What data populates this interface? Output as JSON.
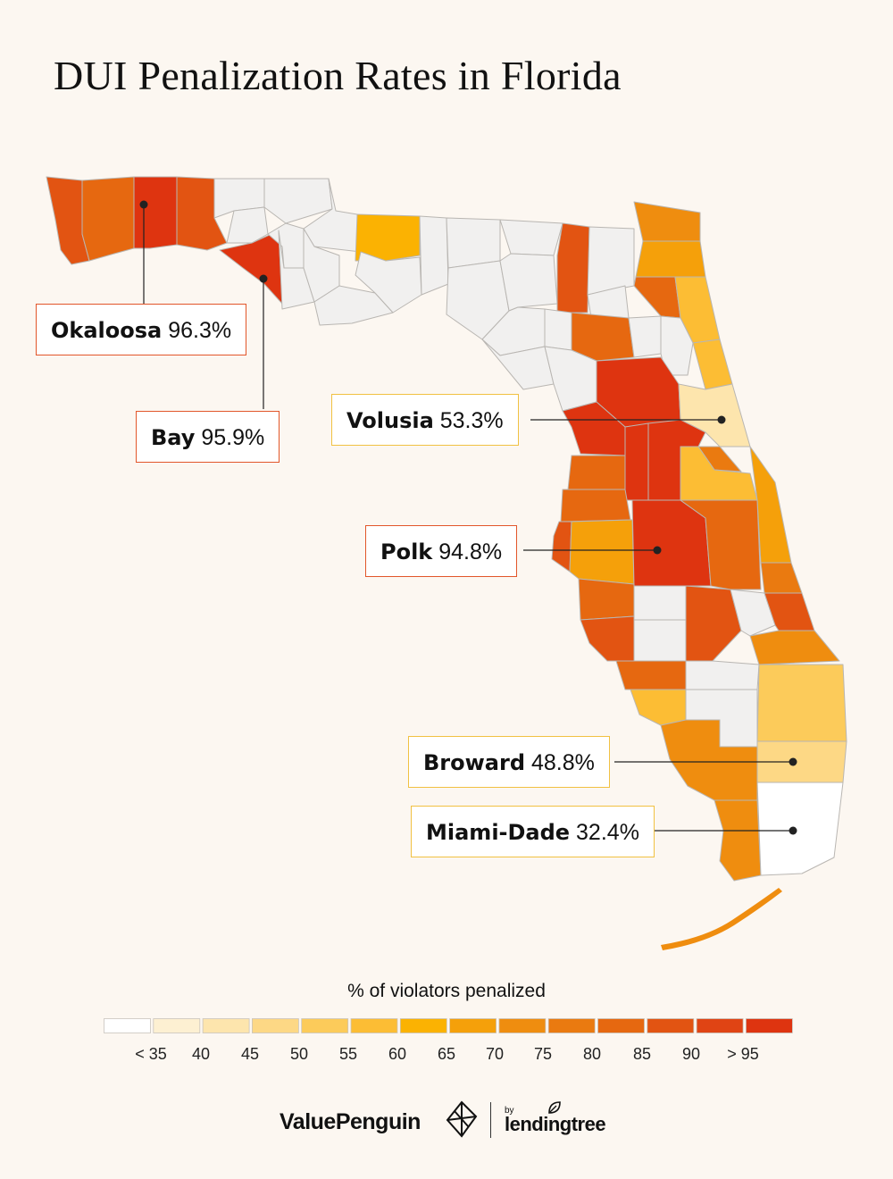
{
  "title": "DUI Penalization Rates in Florida",
  "callouts": [
    {
      "county": "Okaloosa",
      "value": "96.3%",
      "style": "red"
    },
    {
      "county": "Bay",
      "value": "95.9%",
      "style": "red"
    },
    {
      "county": "Volusia",
      "value": "53.3%",
      "style": "yellow"
    },
    {
      "county": "Polk",
      "value": "94.8%",
      "style": "red"
    },
    {
      "county": "Broward",
      "value": "48.8%",
      "style": "yellow"
    },
    {
      "county": "Miami-Dade",
      "value": "32.4%",
      "style": "yellow"
    }
  ],
  "legend": {
    "title": "% of violators penalized",
    "labels": [
      "< 35",
      "40",
      "45",
      "50",
      "55",
      "60",
      "65",
      "70",
      "75",
      "80",
      "85",
      "90",
      "> 95"
    ],
    "colors": [
      "#ffffff",
      "#fdf0d2",
      "#fde5ad",
      "#fdd885",
      "#fccb5a",
      "#fcbd34",
      "#fbb202",
      "#f5a00a",
      "#ef8d0f",
      "#ea7a10",
      "#e66810",
      "#e25412",
      "#e04414",
      "#de3410"
    ]
  },
  "colors": {
    "no_data": "#f1f0ef",
    "border": "#b9b6b2",
    "callout_red": "#e2562a",
    "callout_yellow": "#f1c142"
  },
  "brand": {
    "valuepenguin": "ValuePenguin",
    "by": "by",
    "lendingtree": "lendingtree"
  }
}
